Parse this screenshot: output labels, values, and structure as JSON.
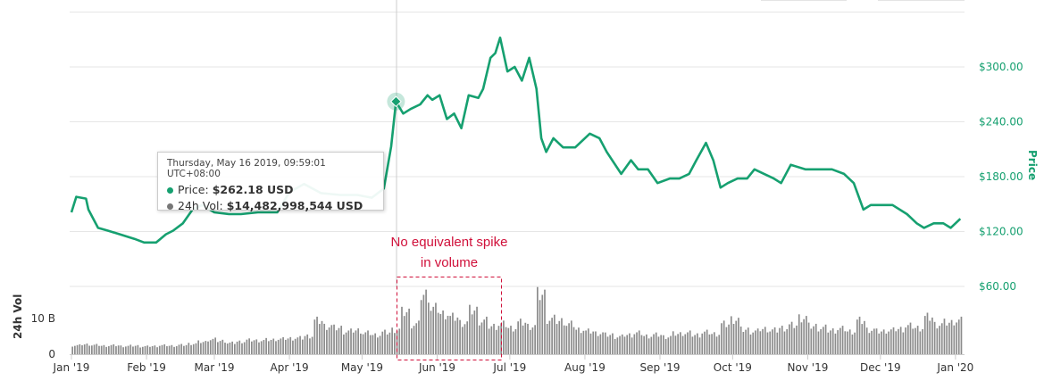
{
  "chart_data": {
    "type": "line",
    "title": "",
    "ylabel": "Price",
    "ylabel_volume": "24h Vol",
    "ylim": [
      60,
      360
    ],
    "price_ticks": [
      "$60.00",
      "$120.00",
      "$180.00",
      "$240.00",
      "$300.00"
    ],
    "price_tick_values": [
      60,
      120,
      180,
      240,
      300
    ],
    "volume_ticks": [
      "0",
      "10 B"
    ],
    "volume_tick_values": [
      0,
      10
    ],
    "x_ticks": [
      "Jan '19",
      "Feb '19",
      "Mar '19",
      "Apr '19",
      "May '19",
      "Jun '19",
      "Jul '19",
      "Aug '19",
      "Sep '19",
      "Oct '19",
      "Nov '19",
      "Dec '19",
      "Jan '20"
    ],
    "x_tick_days": [
      0,
      31,
      59,
      90,
      120,
      151,
      181,
      212,
      243,
      273,
      304,
      334,
      365
    ],
    "price_series": {
      "name": "Price",
      "color": "#16a070",
      "points": [
        [
          0,
          141
        ],
        [
          2,
          158
        ],
        [
          6,
          156
        ],
        [
          7,
          144
        ],
        [
          11,
          124
        ],
        [
          15,
          121
        ],
        [
          20,
          117
        ],
        [
          26,
          112
        ],
        [
          30,
          108
        ],
        [
          35,
          108
        ],
        [
          39,
          117
        ],
        [
          42,
          121
        ],
        [
          46,
          129
        ],
        [
          50,
          144
        ],
        [
          54,
          149
        ],
        [
          59,
          141
        ],
        [
          65,
          139
        ],
        [
          70,
          139
        ],
        [
          77,
          141
        ],
        [
          85,
          141
        ],
        [
          90,
          163
        ],
        [
          96,
          172
        ],
        [
          103,
          162
        ],
        [
          111,
          160
        ],
        [
          118,
          160
        ],
        [
          124,
          157
        ],
        [
          129,
          167
        ],
        [
          132,
          213
        ],
        [
          134,
          262
        ],
        [
          137,
          249
        ],
        [
          140,
          254
        ],
        [
          144,
          259
        ],
        [
          147,
          269
        ],
        [
          149,
          264
        ],
        [
          152,
          269
        ],
        [
          155,
          243
        ],
        [
          158,
          249
        ],
        [
          161,
          233
        ],
        [
          164,
          269
        ],
        [
          168,
          266
        ],
        [
          170,
          276
        ],
        [
          173,
          310
        ],
        [
          175,
          315
        ],
        [
          177,
          332
        ],
        [
          180,
          295
        ],
        [
          183,
          300
        ],
        [
          186,
          285
        ],
        [
          189,
          310
        ],
        [
          192,
          276
        ],
        [
          194,
          222
        ],
        [
          196,
          207
        ],
        [
          199,
          222
        ],
        [
          203,
          212
        ],
        [
          208,
          212
        ],
        [
          214,
          227
        ],
        [
          218,
          222
        ],
        [
          221,
          207
        ],
        [
          227,
          183
        ],
        [
          231,
          198
        ],
        [
          234,
          188
        ],
        [
          238,
          188
        ],
        [
          242,
          173
        ],
        [
          247,
          178
        ],
        [
          251,
          178
        ],
        [
          255,
          183
        ],
        [
          258,
          198
        ],
        [
          262,
          217
        ],
        [
          265,
          198
        ],
        [
          268,
          168
        ],
        [
          271,
          173
        ],
        [
          275,
          178
        ],
        [
          279,
          178
        ],
        [
          282,
          188
        ],
        [
          286,
          183
        ],
        [
          290,
          178
        ],
        [
          293,
          173
        ],
        [
          297,
          193
        ],
        [
          303,
          188
        ],
        [
          308,
          188
        ],
        [
          314,
          188
        ],
        [
          319,
          183
        ],
        [
          323,
          173
        ],
        [
          327,
          144
        ],
        [
          330,
          149
        ],
        [
          336,
          149
        ],
        [
          339,
          149
        ],
        [
          345,
          139
        ],
        [
          349,
          129
        ],
        [
          352,
          124
        ],
        [
          356,
          129
        ],
        [
          360,
          129
        ],
        [
          363,
          124
        ],
        [
          367,
          134
        ]
      ]
    },
    "volume_series": {
      "name": "24h Vol",
      "unit": "B",
      "color": "#8c8c8c",
      "day_step": 4,
      "values": [
        2.5,
        2.8,
        2.6,
        2.4,
        2.5,
        2.3,
        2.4,
        2.2,
        2.3,
        2.5,
        2.4,
        2.6,
        3.0,
        3.5,
        4.2,
        3.8,
        3.2,
        3.6,
        4.0,
        3.9,
        4.1,
        4.3,
        4.5,
        4.6,
        5.2,
        9.5,
        8.0,
        7.5,
        6.5,
        6.8,
        6.0,
        5.5,
        6.2,
        7.0,
        12.0,
        8.5,
        17.0,
        13.0,
        11.5,
        10.5,
        9.0,
        12.5,
        9.5,
        8.0,
        8.5,
        7.5,
        9.0,
        8.0,
        17.0,
        10.0,
        9.5,
        8.5,
        7.0,
        6.5,
        6.0,
        5.5,
        5.0,
        5.5,
        6.0,
        5.2,
        5.5,
        5.0,
        5.8,
        6.0,
        5.5,
        6.2,
        5.8,
        8.5,
        10.0,
        7.0,
        6.5,
        7.2,
        6.8,
        7.5,
        8.2,
        10.5,
        8.0,
        7.5,
        6.8,
        7.2,
        6.5,
        9.5,
        7.0,
        6.5,
        6.8,
        7.2,
        8.0,
        7.5,
        10.5,
        8.5,
        9.0,
        9.5
      ]
    },
    "tooltip": {
      "date": "Thursday, May 16 2019, 09:59:01 UTC+08:00",
      "price_label": "Price:",
      "price_value": "$262.18 USD",
      "vol_label": "24h Vol:",
      "vol_value": "$14,482,998,544 USD",
      "hover_day": 134,
      "hover_price": 262.18
    },
    "annotation": {
      "line1": "No equivalent spike",
      "line2": "in volume",
      "color": "#d0103a",
      "day_range": [
        134,
        178
      ]
    }
  }
}
